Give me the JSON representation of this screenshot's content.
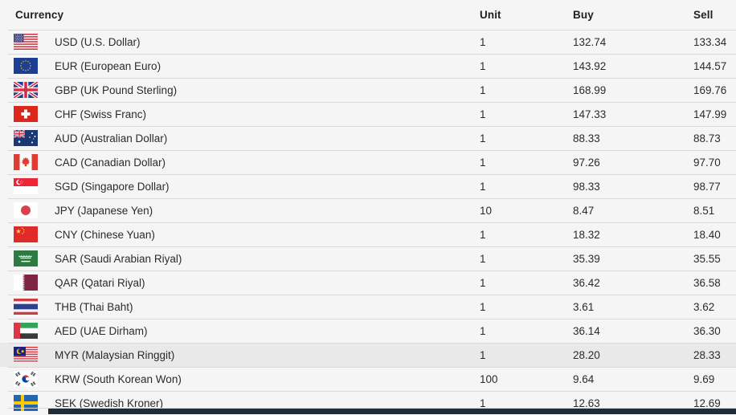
{
  "page": {
    "background_color": "#f5f5f6",
    "footer_bar_color": "#1e2d38"
  },
  "table": {
    "headers": {
      "currency": "Currency",
      "unit": "Unit",
      "buy": "Buy",
      "sell": "Sell"
    },
    "colors": {
      "text": "#2b2b2b",
      "header_text": "#1f1f1f",
      "row_border": "#d9d9dd",
      "highlight_row_bg": "#e9e9ea"
    },
    "rows": [
      {
        "code": "USD",
        "display_name": "USD (U.S. Dollar)",
        "flag": "us",
        "flag_icon": "us-flag-icon",
        "unit": "1",
        "buy": "132.74",
        "sell": "133.34",
        "highlighted": false
      },
      {
        "code": "EUR",
        "display_name": "EUR (European Euro)",
        "flag": "eu",
        "flag_icon": "eu-flag-icon",
        "unit": "1",
        "buy": "143.92",
        "sell": "144.57",
        "highlighted": false
      },
      {
        "code": "GBP",
        "display_name": "GBP (UK Pound Sterling)",
        "flag": "gb",
        "flag_icon": "uk-flag-icon",
        "unit": "1",
        "buy": "168.99",
        "sell": "169.76",
        "highlighted": false
      },
      {
        "code": "CHF",
        "display_name": "CHF (Swiss Franc)",
        "flag": "ch",
        "flag_icon": "switzerland-flag-icon",
        "unit": "1",
        "buy": "147.33",
        "sell": "147.99",
        "highlighted": false
      },
      {
        "code": "AUD",
        "display_name": "AUD (Australian Dollar)",
        "flag": "au",
        "flag_icon": "australia-flag-icon",
        "unit": "1",
        "buy": "88.33",
        "sell": "88.73",
        "highlighted": false
      },
      {
        "code": "CAD",
        "display_name": "CAD (Canadian Dollar)",
        "flag": "ca",
        "flag_icon": "canada-flag-icon",
        "unit": "1",
        "buy": "97.26",
        "sell": "97.70",
        "highlighted": false
      },
      {
        "code": "SGD",
        "display_name": "SGD (Singapore Dollar)",
        "flag": "sg",
        "flag_icon": "singapore-flag-icon",
        "unit": "1",
        "buy": "98.33",
        "sell": "98.77",
        "highlighted": false
      },
      {
        "code": "JPY",
        "display_name": "JPY (Japanese Yen)",
        "flag": "jp",
        "flag_icon": "japan-flag-icon",
        "unit": "10",
        "buy": "8.47",
        "sell": "8.51",
        "highlighted": false
      },
      {
        "code": "CNY",
        "display_name": "CNY (Chinese Yuan)",
        "flag": "cn",
        "flag_icon": "china-flag-icon",
        "unit": "1",
        "buy": "18.32",
        "sell": "18.40",
        "highlighted": false
      },
      {
        "code": "SAR",
        "display_name": "SAR (Saudi Arabian Riyal)",
        "flag": "sa",
        "flag_icon": "saudi-arabia-flag-icon",
        "unit": "1",
        "buy": "35.39",
        "sell": "35.55",
        "highlighted": false
      },
      {
        "code": "QAR",
        "display_name": "QAR (Qatari Riyal)",
        "flag": "qa",
        "flag_icon": "qatar-flag-icon",
        "unit": "1",
        "buy": "36.42",
        "sell": "36.58",
        "highlighted": false
      },
      {
        "code": "THB",
        "display_name": "THB (Thai Baht)",
        "flag": "th",
        "flag_icon": "thailand-flag-icon",
        "unit": "1",
        "buy": "3.61",
        "sell": "3.62",
        "highlighted": false
      },
      {
        "code": "AED",
        "display_name": "AED (UAE Dirham)",
        "flag": "ae",
        "flag_icon": "uae-flag-icon",
        "unit": "1",
        "buy": "36.14",
        "sell": "36.30",
        "highlighted": false
      },
      {
        "code": "MYR",
        "display_name": "MYR (Malaysian Ringgit)",
        "flag": "my",
        "flag_icon": "malaysia-flag-icon",
        "unit": "1",
        "buy": "28.20",
        "sell": "28.33",
        "highlighted": true
      },
      {
        "code": "KRW",
        "display_name": "KRW (South Korean Won)",
        "flag": "kr",
        "flag_icon": "south-korea-flag-icon",
        "unit": "100",
        "buy": "9.64",
        "sell": "9.69",
        "highlighted": false
      },
      {
        "code": "SEK",
        "display_name": "SEK (Swedish Kroner)",
        "flag": "se",
        "flag_icon": "sweden-flag-icon",
        "unit": "1",
        "buy": "12.63",
        "sell": "12.69",
        "highlighted": false
      }
    ]
  }
}
